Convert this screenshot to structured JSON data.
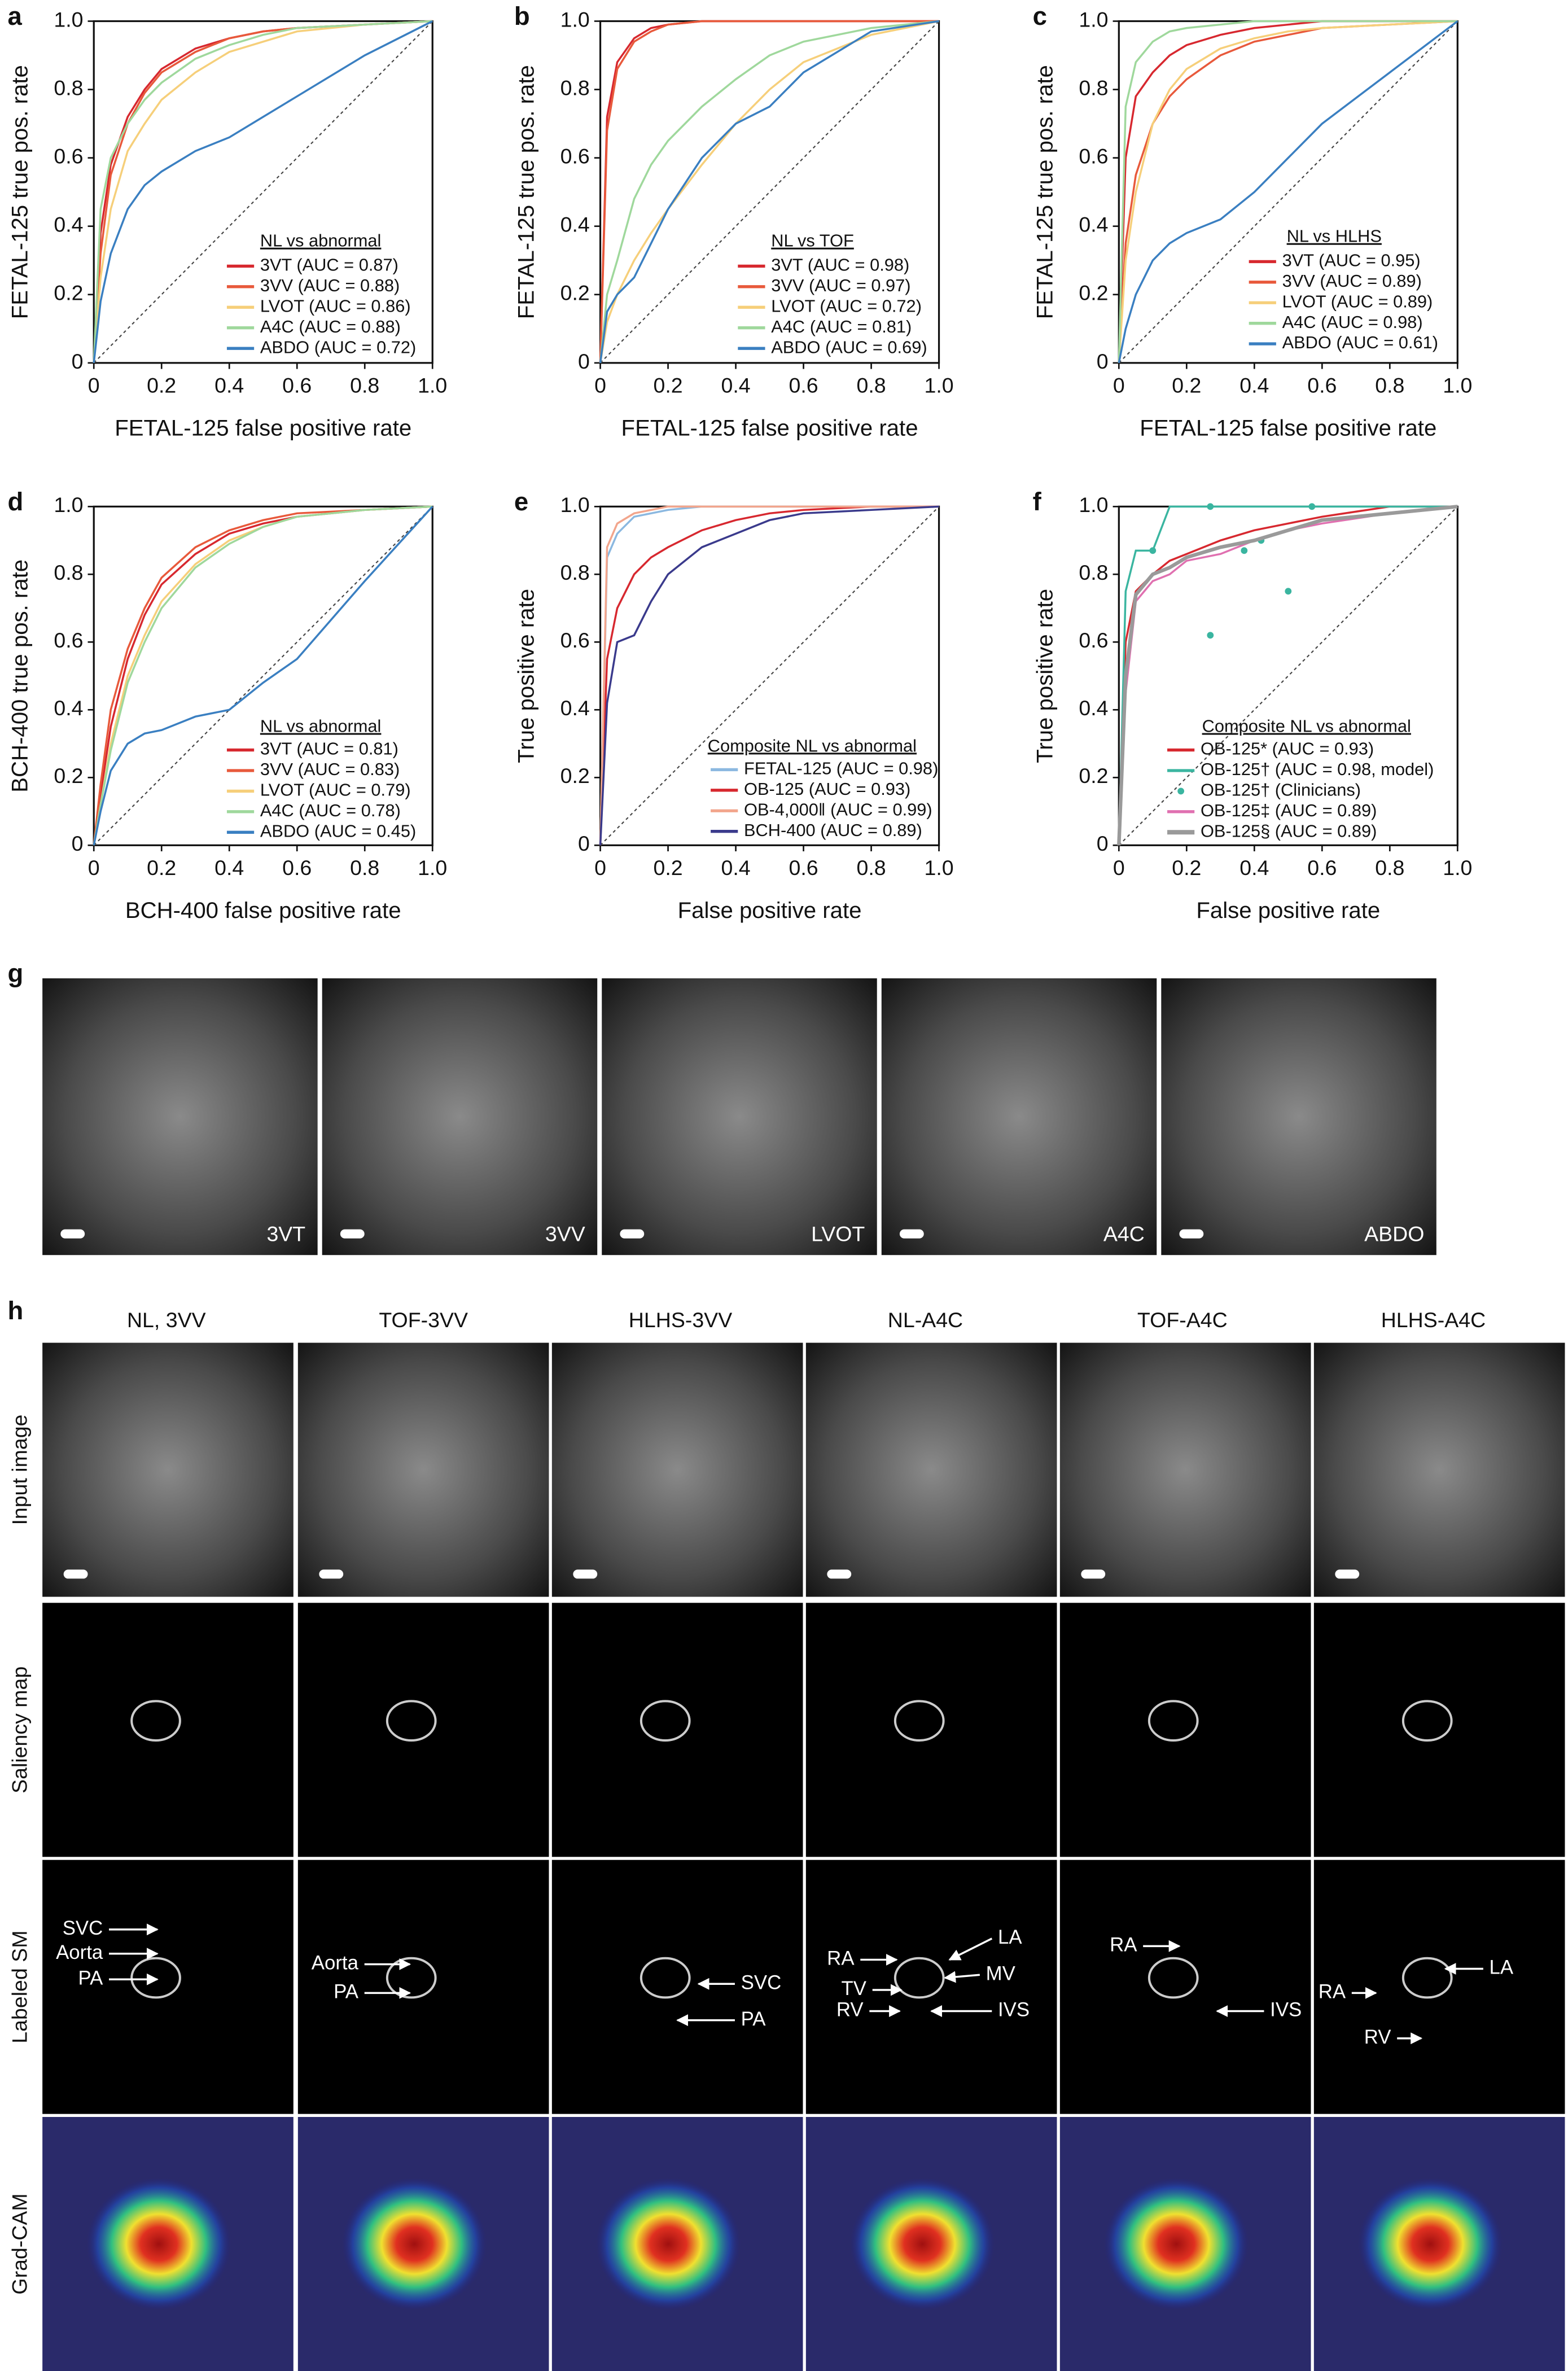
{
  "chart_data": [
    {
      "type": "line",
      "panel": "a",
      "xlabel": "FETAL-125 false positive rate",
      "ylabel": "FETAL-125 true pos. rate",
      "legend_title": "NL vs abnormal",
      "legend": "lower right",
      "xlim": [
        0,
        1
      ],
      "ylim": [
        0,
        1
      ],
      "xticks": [
        0,
        0.2,
        0.4,
        0.6,
        0.8,
        {
          "value": 1,
          "label": "1.0"
        }
      ],
      "yticks": [
        0,
        0.2,
        0.4,
        0.6,
        0.8,
        {
          "value": 1,
          "label": "1.0"
        }
      ],
      "x": [
        0,
        0.02,
        0.05,
        0.1,
        0.15,
        0.2,
        0.3,
        0.4,
        0.5,
        0.6,
        0.8,
        1
      ],
      "series": [
        {
          "name": "3VT (AUC = 0.87)",
          "color": "#d7282f",
          "values": [
            0,
            0.38,
            0.58,
            0.72,
            0.8,
            0.86,
            0.92,
            0.95,
            0.97,
            0.98,
            0.99,
            1
          ]
        },
        {
          "name": "3VV (AUC = 0.88)",
          "color": "#e8593b",
          "values": [
            0,
            0.32,
            0.55,
            0.7,
            0.79,
            0.85,
            0.91,
            0.95,
            0.97,
            0.98,
            0.99,
            1
          ]
        },
        {
          "name": "LVOT (AUC = 0.86)",
          "color": "#f6cf7a",
          "values": [
            0,
            0.25,
            0.45,
            0.62,
            0.7,
            0.77,
            0.85,
            0.91,
            0.94,
            0.97,
            0.99,
            1
          ]
        },
        {
          "name": "A4C (AUC = 0.88)",
          "color": "#9fd89c",
          "values": [
            0,
            0.45,
            0.6,
            0.7,
            0.77,
            0.82,
            0.89,
            0.93,
            0.96,
            0.98,
            0.99,
            1
          ]
        },
        {
          "name": "ABDO (AUC = 0.72)",
          "color": "#3a7fc1",
          "values": [
            0,
            0.18,
            0.32,
            0.45,
            0.52,
            0.56,
            0.62,
            0.66,
            0.72,
            0.78,
            0.9,
            1
          ]
        }
      ]
    },
    {
      "type": "line",
      "panel": "b",
      "xlabel": "FETAL-125 false positive rate",
      "ylabel": "FETAL-125 true pos. rate",
      "legend_title": "NL vs TOF",
      "legend": "lower right",
      "xlim": [
        0,
        1
      ],
      "ylim": [
        0,
        1
      ],
      "xticks": [
        0,
        0.2,
        0.4,
        0.6,
        0.8,
        {
          "value": 1,
          "label": "1.0"
        }
      ],
      "yticks": [
        0,
        0.2,
        0.4,
        0.6,
        0.8,
        {
          "value": 1,
          "label": "1.0"
        }
      ],
      "x": [
        0,
        0.02,
        0.05,
        0.1,
        0.15,
        0.2,
        0.3,
        0.4,
        0.5,
        0.6,
        0.8,
        1
      ],
      "series": [
        {
          "name": "3VT (AUC = 0.98)",
          "color": "#d7282f",
          "values": [
            0,
            0.72,
            0.88,
            0.95,
            0.98,
            0.99,
            1,
            1,
            1,
            1,
            1,
            1
          ]
        },
        {
          "name": "3VV (AUC = 0.97)",
          "color": "#e8593b",
          "values": [
            0,
            0.68,
            0.86,
            0.94,
            0.97,
            0.99,
            1,
            1,
            1,
            1,
            1,
            1
          ]
        },
        {
          "name": "LVOT (AUC = 0.72)",
          "color": "#f6cf7a",
          "values": [
            0,
            0.12,
            0.2,
            0.3,
            0.38,
            0.45,
            0.58,
            0.7,
            0.8,
            0.88,
            0.96,
            1
          ]
        },
        {
          "name": "A4C (AUC = 0.81)",
          "color": "#9fd89c",
          "values": [
            0,
            0.2,
            0.3,
            0.48,
            0.58,
            0.65,
            0.75,
            0.83,
            0.9,
            0.94,
            0.98,
            1
          ]
        },
        {
          "name": "ABDO (AUC = 0.69)",
          "color": "#3a7fc1",
          "values": [
            0,
            0.15,
            0.2,
            0.25,
            0.35,
            0.45,
            0.6,
            0.7,
            0.75,
            0.85,
            0.97,
            1
          ]
        }
      ]
    },
    {
      "type": "line",
      "panel": "c",
      "xlabel": "FETAL-125 false positive rate",
      "ylabel": "FETAL-125 true pos. rate",
      "legend_title": "NL vs HLHS",
      "legend": "lower right",
      "xlim": [
        0,
        1
      ],
      "ylim": [
        0,
        1
      ],
      "xticks": [
        0,
        0.2,
        0.4,
        0.6,
        0.8,
        {
          "value": 1,
          "label": "1.0"
        }
      ],
      "yticks": [
        0,
        0.2,
        0.4,
        0.6,
        0.8,
        {
          "value": 1,
          "label": "1.0"
        }
      ],
      "x": [
        0,
        0.02,
        0.05,
        0.1,
        0.15,
        0.2,
        0.3,
        0.4,
        0.5,
        0.6,
        0.8,
        1
      ],
      "series": [
        {
          "name": "3VT (AUC = 0.95)",
          "color": "#d7282f",
          "values": [
            0,
            0.6,
            0.78,
            0.85,
            0.9,
            0.93,
            0.96,
            0.98,
            0.99,
            1,
            1,
            1
          ]
        },
        {
          "name": "3VV (AUC = 0.89)",
          "color": "#e8593b",
          "values": [
            0,
            0.35,
            0.55,
            0.7,
            0.78,
            0.83,
            0.9,
            0.94,
            0.96,
            0.98,
            0.99,
            1
          ]
        },
        {
          "name": "LVOT (AUC = 0.89)",
          "color": "#f6cf7a",
          "values": [
            0,
            0.3,
            0.5,
            0.7,
            0.8,
            0.86,
            0.92,
            0.95,
            0.97,
            0.98,
            0.99,
            1
          ]
        },
        {
          "name": "A4C (AUC = 0.98)",
          "color": "#9fd89c",
          "values": [
            0,
            0.75,
            0.88,
            0.94,
            0.97,
            0.98,
            0.99,
            1,
            1,
            1,
            1,
            1
          ]
        },
        {
          "name": "ABDO (AUC = 0.61)",
          "color": "#3a7fc1",
          "values": [
            0,
            0.1,
            0.2,
            0.3,
            0.35,
            0.38,
            0.42,
            0.5,
            0.6,
            0.7,
            0.85,
            1
          ]
        }
      ]
    },
    {
      "type": "line",
      "panel": "d",
      "xlabel": "BCH-400 false positive rate",
      "ylabel": "BCH-400 true pos. rate",
      "legend_title": "NL vs abnormal",
      "legend": "lower right",
      "xlim": [
        0,
        1
      ],
      "ylim": [
        0,
        1
      ],
      "xticks": [
        0,
        0.2,
        0.4,
        0.6,
        0.8,
        {
          "value": 1,
          "label": "1.0"
        }
      ],
      "yticks": [
        0,
        0.2,
        0.4,
        0.6,
        0.8,
        {
          "value": 1,
          "label": "1.0"
        }
      ],
      "x": [
        0,
        0.02,
        0.05,
        0.1,
        0.15,
        0.2,
        0.3,
        0.4,
        0.5,
        0.6,
        0.8,
        1
      ],
      "series": [
        {
          "name": "3VT (AUC = 0.81)",
          "color": "#d7282f",
          "values": [
            0,
            0.15,
            0.35,
            0.55,
            0.68,
            0.77,
            0.86,
            0.92,
            0.95,
            0.97,
            0.99,
            1
          ]
        },
        {
          "name": "3VV (AUC = 0.83)",
          "color": "#e8593b",
          "values": [
            0,
            0.18,
            0.4,
            0.58,
            0.7,
            0.79,
            0.88,
            0.93,
            0.96,
            0.98,
            0.99,
            1
          ]
        },
        {
          "name": "LVOT (AUC = 0.79)",
          "color": "#f6cf7a",
          "values": [
            0,
            0.12,
            0.3,
            0.5,
            0.62,
            0.72,
            0.83,
            0.9,
            0.94,
            0.97,
            0.99,
            1
          ]
        },
        {
          "name": "A4C (AUC = 0.78)",
          "color": "#9fd89c",
          "values": [
            0,
            0.12,
            0.28,
            0.48,
            0.6,
            0.7,
            0.82,
            0.89,
            0.94,
            0.97,
            0.99,
            1
          ]
        },
        {
          "name": "ABDO (AUC = 0.45)",
          "color": "#3a7fc1",
          "values": [
            0,
            0.1,
            0.22,
            0.3,
            0.33,
            0.34,
            0.38,
            0.4,
            0.48,
            0.55,
            0.78,
            1
          ]
        }
      ]
    },
    {
      "type": "line",
      "panel": "e",
      "xlabel": "False positive rate",
      "ylabel": "True positive rate",
      "legend_title": "Composite NL vs abnormal",
      "legend": "lower right",
      "xlim": [
        0,
        1
      ],
      "ylim": [
        0,
        1
      ],
      "xticks": [
        0,
        0.2,
        0.4,
        0.6,
        0.8,
        {
          "value": 1,
          "label": "1.0"
        }
      ],
      "yticks": [
        0,
        0.2,
        0.4,
        0.6,
        0.8,
        {
          "value": 1,
          "label": "1.0"
        }
      ],
      "x": [
        0,
        0.02,
        0.05,
        0.1,
        0.15,
        0.2,
        0.3,
        0.4,
        0.5,
        0.6,
        0.8,
        1
      ],
      "series": [
        {
          "name": "FETAL-125 (AUC = 0.98)",
          "color": "#8bb8e0",
          "values": [
            0,
            0.85,
            0.92,
            0.97,
            0.98,
            0.99,
            1,
            1,
            1,
            1,
            1,
            1
          ]
        },
        {
          "name": "OB-125 (AUC = 0.93)",
          "color": "#d7282f",
          "values": [
            0,
            0.55,
            0.7,
            0.8,
            0.85,
            0.88,
            0.93,
            0.96,
            0.98,
            0.99,
            1,
            1
          ]
        },
        {
          "name": "OB-4,000‖ (AUC = 0.99)",
          "color": "#f2a58c",
          "values": [
            0,
            0.88,
            0.95,
            0.98,
            0.99,
            1,
            1,
            1,
            1,
            1,
            1,
            1
          ]
        },
        {
          "name": "BCH-400 (AUC = 0.89)",
          "color": "#3a3a8c",
          "values": [
            0,
            0.42,
            0.6,
            0.62,
            0.72,
            0.8,
            0.88,
            0.92,
            0.96,
            0.98,
            0.99,
            1
          ]
        }
      ]
    },
    {
      "type": "line",
      "panel": "f",
      "xlabel": "False positive rate",
      "ylabel": "True positive rate",
      "legend_title": "Composite NL vs abnormal",
      "legend": "lower right",
      "xlim": [
        0,
        1
      ],
      "ylim": [
        0,
        1
      ],
      "xticks": [
        0,
        0.2,
        0.4,
        0.6,
        0.8,
        {
          "value": 1,
          "label": "1.0"
        }
      ],
      "yticks": [
        0,
        0.2,
        0.4,
        0.6,
        0.8,
        {
          "value": 1,
          "label": "1.0"
        }
      ],
      "x": [
        0,
        0.02,
        0.05,
        0.1,
        0.15,
        0.2,
        0.3,
        0.4,
        0.5,
        0.6,
        0.8,
        1
      ],
      "series": [
        {
          "name": "OB-125* (AUC = 0.93)",
          "color": "#d7282f",
          "values": [
            0,
            0.6,
            0.75,
            0.8,
            0.84,
            0.86,
            0.9,
            0.93,
            0.95,
            0.97,
            1,
            1
          ]
        },
        {
          "name": "OB-125† (AUC = 0.98, model)",
          "color": "#3ab5a0",
          "values": [
            0,
            0.75,
            0.87,
            0.87,
            1,
            1,
            1,
            1,
            1,
            1,
            1,
            1
          ]
        },
        {
          "name": "OB-125† (Clinicians)",
          "color": "#3ab5a0",
          "marker": "dot",
          "x": [
            0.1,
            0.27,
            0.27,
            0.37,
            0.42,
            0.5,
            0.57
          ],
          "values": [
            0.87,
            1,
            0.62,
            0.87,
            0.9,
            0.75,
            1
          ]
        },
        {
          "name": "OB-125‡ (AUC = 0.89)",
          "color": "#e070b0",
          "values": [
            0,
            0.45,
            0.72,
            0.78,
            0.8,
            0.84,
            0.86,
            0.9,
            0.93,
            0.95,
            0.98,
            1
          ]
        },
        {
          "name": "OB-125§ (AUC = 0.89)",
          "color": "#9a9a9a",
          "values": [
            0,
            0.5,
            0.74,
            0.8,
            0.82,
            0.85,
            0.88,
            0.9,
            0.93,
            0.96,
            0.98,
            1
          ]
        }
      ]
    }
  ],
  "panel_g": {
    "label": "g",
    "images": [
      "3VT",
      "3VV",
      "LVOT",
      "A4C",
      "ABDO"
    ]
  },
  "panel_h": {
    "label": "h",
    "columns": [
      "NL, 3VV",
      "TOF-3VV",
      "HLHS-3VV",
      "NL-A4C",
      "TOF-A4C",
      "HLHS-A4C"
    ],
    "rows": [
      "Input image",
      "Saliency map",
      "Labeled SM",
      "Grad-CAM"
    ],
    "annotations": [
      [
        "SVC",
        "Aorta",
        "PA"
      ],
      [
        "Aorta",
        "PA"
      ],
      [
        "SVC",
        "PA"
      ],
      [
        "RA",
        "LA",
        "TV",
        "MV",
        "RV",
        "IVS"
      ],
      [
        "RA",
        "IVS"
      ],
      [
        "RA",
        "LA",
        "RV"
      ]
    ]
  }
}
